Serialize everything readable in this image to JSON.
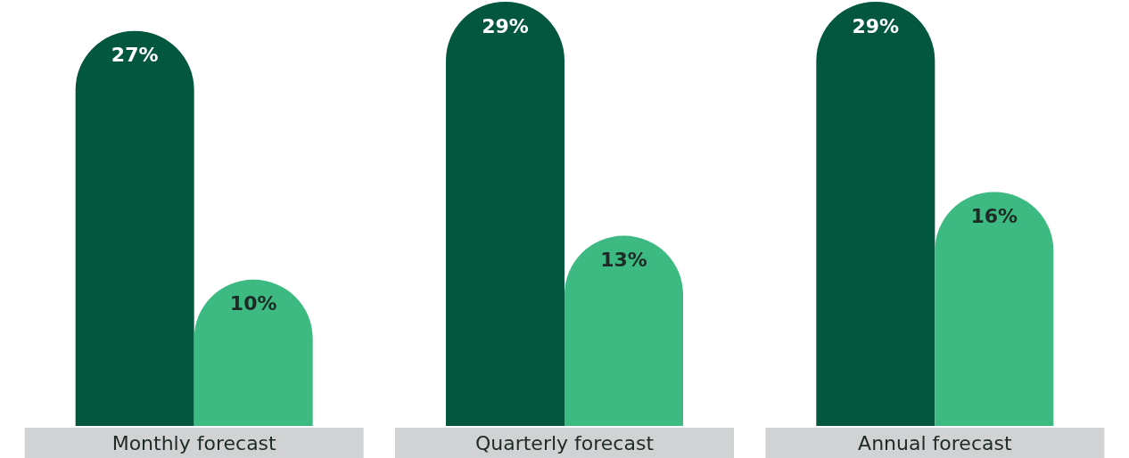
{
  "chart_data": {
    "type": "bar",
    "categories": [
      "Monthly forecast",
      "Quarterly forecast",
      "Annual forecast"
    ],
    "series": [
      {
        "color": "#03573f",
        "values": [
          27,
          29,
          29
        ],
        "value_labels": [
          "27%",
          "29%",
          "29%"
        ]
      },
      {
        "color": "#3dba82",
        "values": [
          10,
          13,
          16
        ],
        "value_labels": [
          "10%",
          "13%",
          "16%"
        ]
      }
    ]
  }
}
